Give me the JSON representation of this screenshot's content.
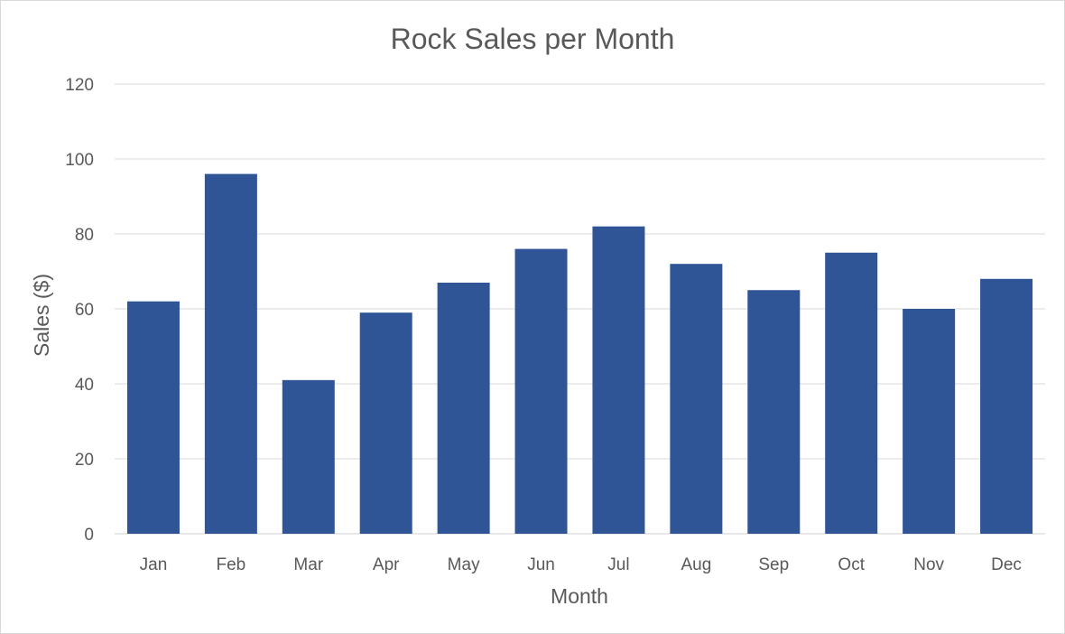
{
  "chart_data": {
    "type": "bar",
    "title": "Rock Sales per Month",
    "xlabel": "Month",
    "ylabel": "Sales ($)",
    "categories": [
      "Jan",
      "Feb",
      "Mar",
      "Apr",
      "May",
      "Jun",
      "Jul",
      "Aug",
      "Sep",
      "Oct",
      "Nov",
      "Dec"
    ],
    "values": [
      62,
      96,
      41,
      59,
      67,
      76,
      82,
      72,
      65,
      75,
      60,
      68
    ],
    "ylim": [
      0,
      120
    ],
    "yticks": [
      0,
      20,
      40,
      60,
      80,
      100,
      120
    ],
    "grid": true,
    "legend": "none",
    "bar_color": "#2F5597"
  }
}
